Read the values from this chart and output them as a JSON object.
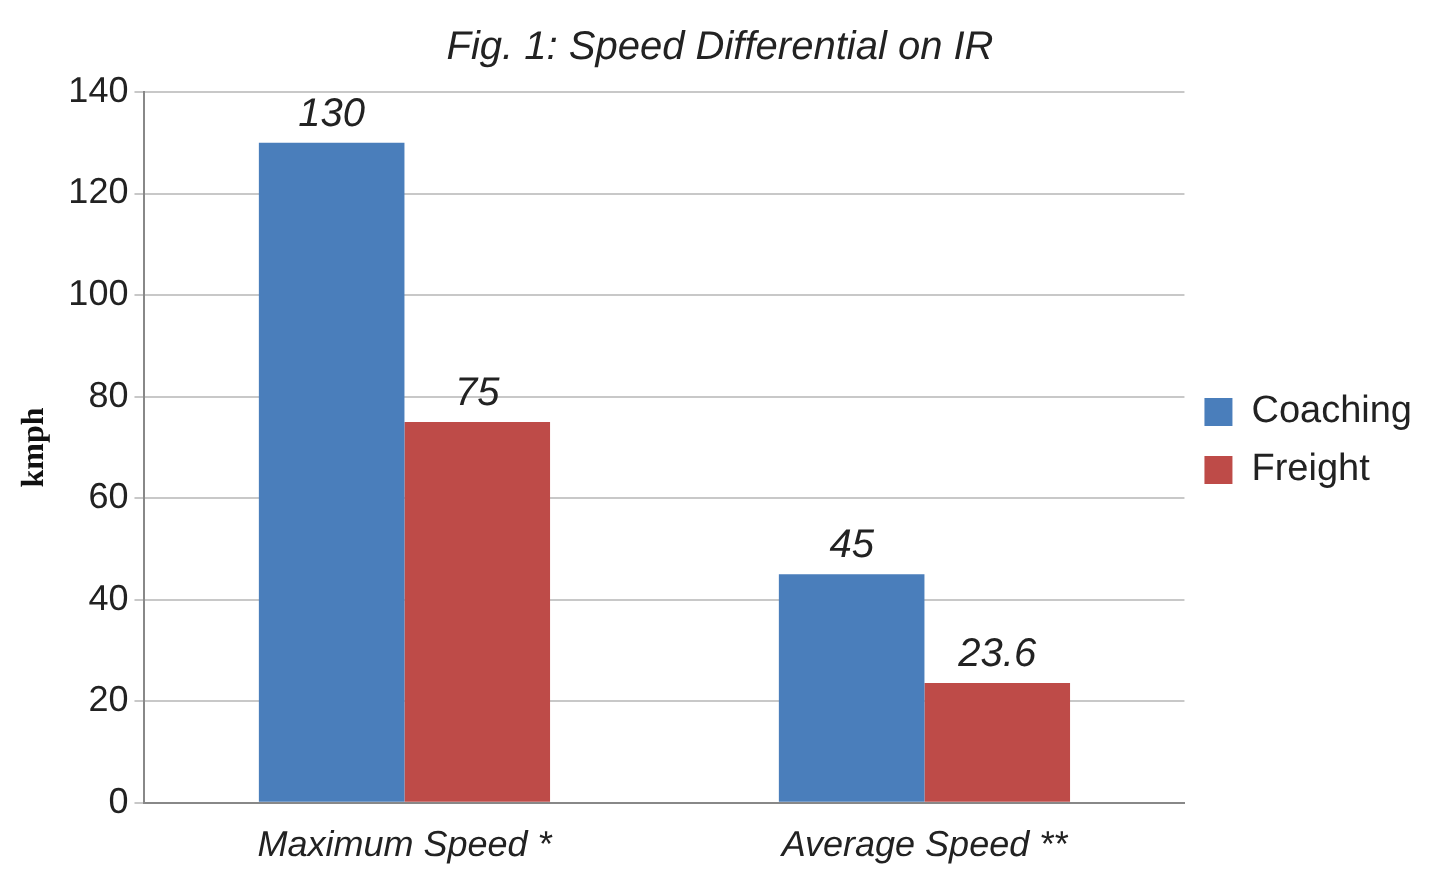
{
  "chart_data": {
    "type": "bar",
    "title": "Fig. 1: Speed Differential on IR",
    "ylabel": "kmph",
    "categories": [
      "Maximum Speed *",
      "Average Speed **"
    ],
    "series": [
      {
        "name": "Coaching",
        "color": "#4a7ebb",
        "values": [
          130,
          45
        ]
      },
      {
        "name": "Freight",
        "color": "#be4b48",
        "values": [
          75,
          23.6
        ]
      }
    ],
    "ylim": [
      0,
      140
    ],
    "yticks": [
      0,
      20,
      40,
      60,
      80,
      100,
      120,
      140
    ],
    "grid": "y",
    "legend": "right",
    "data_labels": true
  }
}
